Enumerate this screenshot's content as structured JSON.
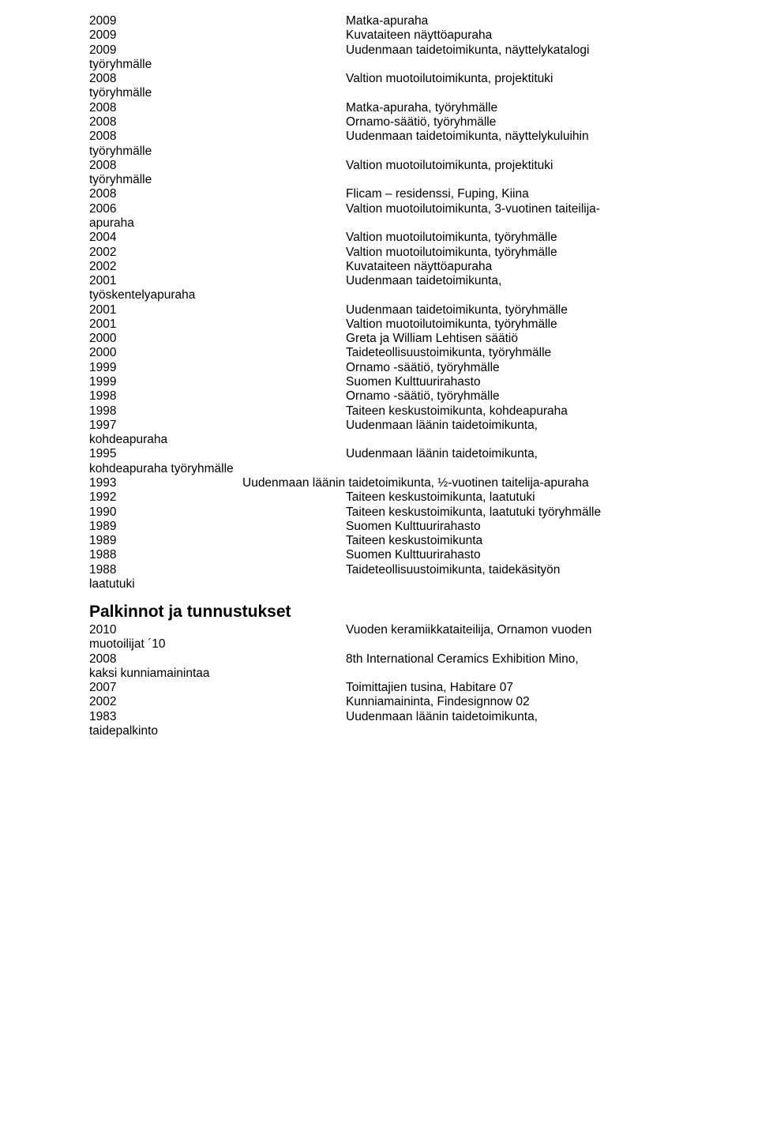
{
  "grants": [
    {
      "y": "2009",
      "d": "Matka-apuraha"
    },
    {
      "y": "2009",
      "d": "Kuvataiteen näyttöapuraha"
    },
    {
      "y": "2009",
      "d": "Uudenmaan taidetoimikunta, näyttelykatalogi"
    },
    {
      "cont": "työryhmälle"
    },
    {
      "y": "2008",
      "d": "Valtion muotoilutoimikunta, projektituki"
    },
    {
      "cont": "työryhmälle"
    },
    {
      "y": "2008",
      "d": "Matka-apuraha, työryhmälle"
    },
    {
      "y": "2008",
      "d": "Ornamo-säätiö, työryhmälle"
    },
    {
      "y": "2008",
      "d": "Uudenmaan taidetoimikunta, näyttelykuluihin"
    },
    {
      "cont": "työryhmälle"
    },
    {
      "y": "2008",
      "d": "Valtion muotoilutoimikunta, projektituki"
    },
    {
      "cont": "työryhmälle"
    },
    {
      "y": "2008",
      "d": "Flicam – residenssi, Fuping, Kiina"
    },
    {
      "y": "2006",
      "d": "Valtion muotoilutoimikunta, 3-vuotinen taiteilija-"
    },
    {
      "cont": "apuraha"
    },
    {
      "y": "2004",
      "d": "Valtion muotoilutoimikunta, työryhmälle"
    },
    {
      "y": "2002",
      "d": "Valtion muotoilutoimikunta, työryhmälle"
    },
    {
      "y": "2002",
      "d": "Kuvataiteen näyttöapuraha"
    },
    {
      "y": "2001",
      "d": "Uudenmaan taidetoimikunta,"
    },
    {
      "cont": "työskentelyapuraha"
    },
    {
      "y": "2001",
      "d": "Uudenmaan taidetoimikunta, työryhmälle"
    },
    {
      "y": "2001",
      "d": "Valtion muotoilutoimikunta, työryhmälle"
    },
    {
      "y": "2000",
      "d": "Greta ja William Lehtisen säätiö"
    },
    {
      "y": "2000",
      "d": "Taideteollisuustoimikunta, työryhmälle"
    },
    {
      "y": "1999",
      "d": "Ornamo -säätiö, työryhmälle"
    },
    {
      "y": "1999",
      "d": "Suomen Kulttuurirahasto"
    },
    {
      "y": "1998",
      "d": "Ornamo -säätiö, työryhmälle"
    },
    {
      "y": "1998",
      "d": "Taiteen keskustoimikunta, kohdeapuraha"
    },
    {
      "y": "1997",
      "d": "Uudenmaan läänin taidetoimikunta,"
    },
    {
      "cont": "kohdeapuraha"
    },
    {
      "y": "1995",
      "d": "Uudenmaan läänin taidetoimikunta,"
    },
    {
      "cont": "kohdeapuraha työryhmälle"
    },
    {
      "narrow": true,
      "y": "1993",
      "d": "Uudenmaan läänin taidetoimikunta, ½-vuotinen taitelija-apuraha"
    },
    {
      "y": "1992",
      "d": "Taiteen keskustoimikunta, laatutuki"
    },
    {
      "y": "1990",
      "d": "Taiteen keskustoimikunta, laatutuki työryhmälle"
    },
    {
      "y": "1989",
      "d": "Suomen Kulttuurirahasto"
    },
    {
      "y": "1989",
      "d": "Taiteen keskustoimikunta"
    },
    {
      "y": "1988",
      "d": "Suomen Kulttuurirahasto"
    },
    {
      "y": "1988",
      "d": "Taideteollisuustoimikunta, taidekäsityön"
    },
    {
      "cont": "laatutuki"
    }
  ],
  "section_title": "Palkinnot ja tunnustukset",
  "awards": [
    {
      "y": "2010",
      "d": "Vuoden keramiikkataiteilija, Ornamon vuoden"
    },
    {
      "cont": "muotoilijat ´10"
    },
    {
      "y": "2008",
      "d": "8th International Ceramics Exhibition Mino,"
    },
    {
      "cont": "kaksi kunniamainintaa"
    },
    {
      "y": "2007",
      "d": "Toimittajien tusina, Habitare 07"
    },
    {
      "y": "2002",
      "d": "Kunniamaininta, Findesignnow 02"
    },
    {
      "y": "1983",
      "d": "Uudenmaan läänin taidetoimikunta,"
    },
    {
      "cont": "taidepalkinto"
    }
  ]
}
